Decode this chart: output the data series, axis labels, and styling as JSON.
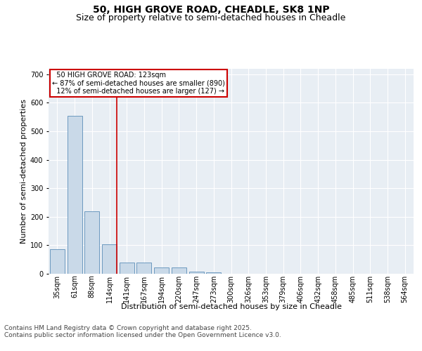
{
  "title_line1": "50, HIGH GROVE ROAD, CHEADLE, SK8 1NP",
  "title_line2": "Size of property relative to semi-detached houses in Cheadle",
  "xlabel": "Distribution of semi-detached houses by size in Cheadle",
  "ylabel": "Number of semi-detached properties",
  "categories": [
    "35sqm",
    "61sqm",
    "88sqm",
    "114sqm",
    "141sqm",
    "167sqm",
    "194sqm",
    "220sqm",
    "247sqm",
    "273sqm",
    "300sqm",
    "326sqm",
    "353sqm",
    "379sqm",
    "406sqm",
    "432sqm",
    "458sqm",
    "485sqm",
    "511sqm",
    "538sqm",
    "564sqm"
  ],
  "values": [
    85,
    555,
    220,
    103,
    40,
    40,
    22,
    22,
    7,
    5,
    0,
    0,
    0,
    0,
    0,
    0,
    0,
    0,
    0,
    0,
    0
  ],
  "bar_color": "#c9d9e8",
  "bar_edge_color": "#5b8db8",
  "marker_bar_index": 3,
  "marker_value": 123,
  "marker_label": "50 HIGH GROVE ROAD: 123sqm",
  "pct_smaller": 87,
  "n_smaller": 890,
  "pct_larger": 12,
  "n_larger": 127,
  "vline_color": "#cc0000",
  "annotation_box_color": "#cc0000",
  "ylim": [
    0,
    720
  ],
  "yticks": [
    0,
    100,
    200,
    300,
    400,
    500,
    600,
    700
  ],
  "bg_color": "#e8eef4",
  "footer": "Contains HM Land Registry data © Crown copyright and database right 2025.\nContains public sector information licensed under the Open Government Licence v3.0.",
  "title_fontsize": 10,
  "subtitle_fontsize": 9,
  "axis_label_fontsize": 8,
  "tick_fontsize": 7,
  "footer_fontsize": 6.5
}
